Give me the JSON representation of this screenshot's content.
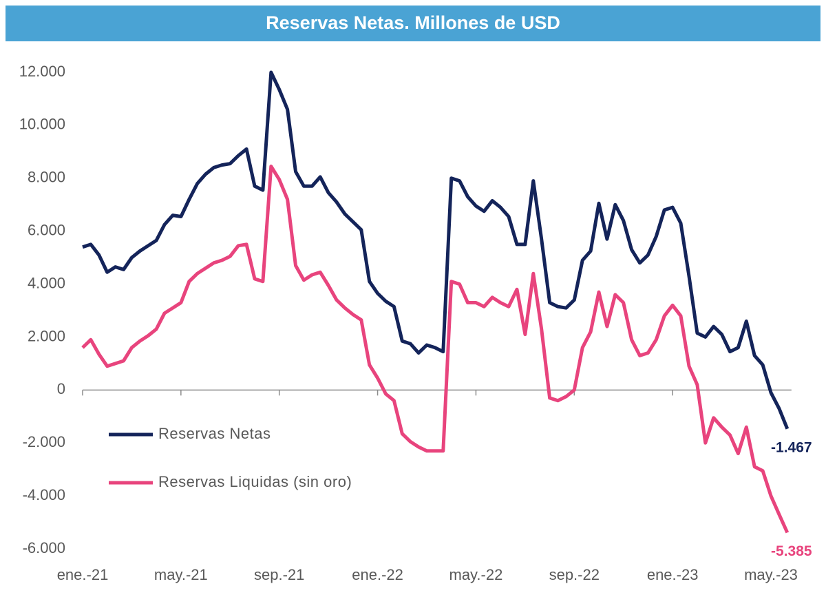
{
  "chart_data": {
    "type": "line",
    "title": "Reservas Netas. Millones de USD",
    "categories": [
      "ene.-21",
      null,
      null,
      null,
      null,
      null,
      null,
      null,
      null,
      null,
      null,
      null,
      "may.-21",
      null,
      null,
      null,
      null,
      null,
      null,
      null,
      null,
      null,
      null,
      null,
      "sep.-21",
      null,
      null,
      null,
      null,
      null,
      null,
      null,
      null,
      null,
      null,
      null,
      "ene.-22",
      null,
      null,
      null,
      null,
      null,
      null,
      null,
      null,
      null,
      null,
      null,
      "may.-22",
      null,
      null,
      null,
      null,
      null,
      null,
      null,
      null,
      null,
      null,
      null,
      "sep.-22",
      null,
      null,
      null,
      null,
      null,
      null,
      null,
      null,
      null,
      null,
      null,
      "ene.-23",
      null,
      null,
      null,
      null,
      null,
      null,
      null,
      null,
      null,
      null,
      null,
      "may.-23",
      null,
      null
    ],
    "series": [
      {
        "name": "Reservas Netas",
        "color": "#14245a",
        "values": [
          5400,
          5500,
          5100,
          4450,
          4650,
          4550,
          5000,
          5250,
          5450,
          5650,
          6250,
          6600,
          6550,
          7200,
          7800,
          8150,
          8400,
          8500,
          8550,
          8850,
          9100,
          7700,
          7550,
          12000,
          11350,
          10600,
          8250,
          7700,
          7700,
          8050,
          7450,
          7100,
          6650,
          6350,
          6050,
          4100,
          3650,
          3350,
          3150,
          1850,
          1750,
          1400,
          1700,
          1600,
          1450,
          8000,
          7900,
          7300,
          6950,
          6750,
          7150,
          6900,
          6550,
          5500,
          5500,
          7900,
          5700,
          3300,
          3150,
          3100,
          3400,
          4900,
          5250,
          7050,
          5700,
          7000,
          6400,
          5300,
          4800,
          5100,
          5800,
          6800,
          6900,
          6300,
          4300,
          2150,
          2000,
          2400,
          2100,
          1450,
          1600,
          2600,
          1300,
          950,
          -100,
          -700,
          -1467
        ],
        "value_labels": [
          null,
          null,
          null,
          null,
          null,
          null,
          null,
          null,
          null,
          null,
          null,
          null,
          null,
          null,
          null,
          null,
          null,
          null,
          null,
          null,
          null,
          null,
          null,
          null,
          null,
          null,
          null,
          null,
          null,
          null,
          null,
          null,
          null,
          null,
          null,
          null,
          null,
          null,
          null,
          null,
          null,
          null,
          null,
          null,
          null,
          null,
          null,
          null,
          null,
          null,
          null,
          null,
          null,
          null,
          null,
          null,
          null,
          null,
          null,
          null,
          null,
          null,
          null,
          null,
          null,
          null,
          null,
          null,
          null,
          null,
          null,
          null,
          null,
          null,
          null,
          null,
          null,
          null,
          null,
          null,
          null,
          null,
          null,
          null,
          null,
          null,
          "-1.467"
        ]
      },
      {
        "name": "Reservas Liquidas (sin oro)",
        "color": "#e8447d",
        "values": [
          1600,
          1900,
          1350,
          900,
          1000,
          1100,
          1600,
          1850,
          2050,
          2300,
          2900,
          3100,
          3300,
          4100,
          4400,
          4600,
          4800,
          4900,
          5050,
          5450,
          5500,
          4200,
          4100,
          8450,
          7950,
          7200,
          4700,
          4150,
          4350,
          4450,
          3950,
          3400,
          3100,
          2850,
          2650,
          950,
          450,
          -150,
          -400,
          -1650,
          -1950,
          -2150,
          -2300,
          -2300,
          -2300,
          4100,
          4000,
          3300,
          3300,
          3150,
          3500,
          3300,
          3150,
          3800,
          2100,
          4400,
          2300,
          -300,
          -400,
          -250,
          0,
          1600,
          2200,
          3700,
          2400,
          3600,
          3300,
          1900,
          1300,
          1400,
          1900,
          2800,
          3200,
          2800,
          900,
          200,
          -2000,
          -1050,
          -1400,
          -1700,
          -2400,
          -1400,
          -2900,
          -3050,
          -4000,
          -4700,
          -5385
        ],
        "value_labels": [
          null,
          null,
          null,
          null,
          null,
          null,
          null,
          null,
          null,
          null,
          null,
          null,
          null,
          null,
          null,
          null,
          null,
          null,
          null,
          null,
          null,
          null,
          null,
          null,
          null,
          null,
          null,
          null,
          null,
          null,
          null,
          null,
          null,
          null,
          null,
          null,
          null,
          null,
          null,
          null,
          null,
          null,
          null,
          null,
          null,
          null,
          null,
          null,
          null,
          null,
          null,
          null,
          null,
          null,
          null,
          null,
          null,
          null,
          null,
          null,
          null,
          null,
          null,
          null,
          null,
          null,
          null,
          null,
          null,
          null,
          null,
          null,
          null,
          null,
          null,
          null,
          null,
          null,
          null,
          null,
          null,
          null,
          null,
          null,
          null,
          null,
          "-5.385"
        ]
      }
    ],
    "ylim": [
      -6000,
      12000
    ],
    "yticks": [
      {
        "value": -6000,
        "label": "-6.000"
      },
      {
        "value": -4000,
        "label": "-4.000"
      },
      {
        "value": -2000,
        "label": "-2.000"
      },
      0,
      {
        "value": 2000,
        "label": "2.000"
      },
      {
        "value": 4000,
        "label": "4.000"
      },
      {
        "value": 6000,
        "label": "6.000"
      },
      {
        "value": 8000,
        "label": "8.000"
      },
      {
        "value": 10000,
        "label": "10.000"
      },
      {
        "value": 12000,
        "label": "12.000"
      }
    ],
    "grid": false,
    "legend": "lower left"
  }
}
